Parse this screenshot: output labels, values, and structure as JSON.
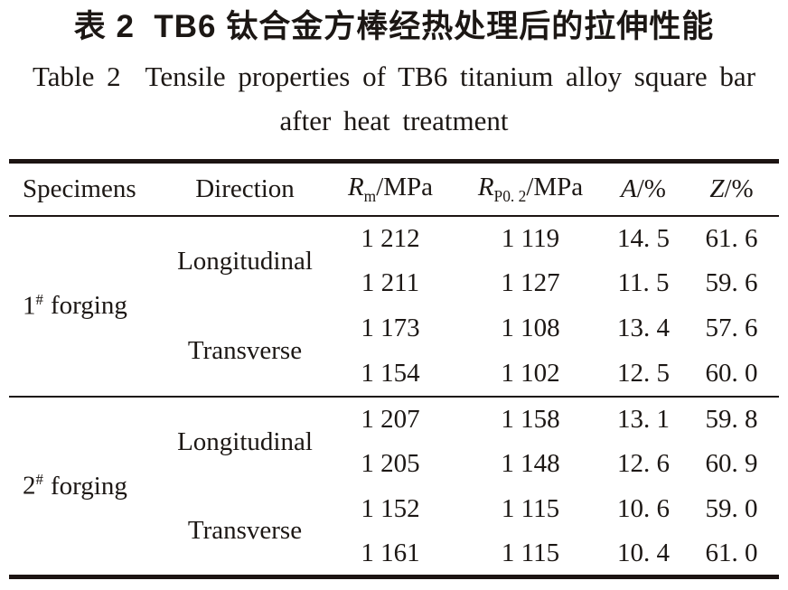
{
  "title": {
    "chinese": "表 2  TB6 钛合金方棒经热处理后的拉伸性能",
    "english_line1": "Table 2  Tensile properties of TB6 titanium alloy square bar",
    "english_line2": "after heat treatment"
  },
  "table": {
    "headers": {
      "specimens": "Specimens",
      "direction": "Direction",
      "rm": {
        "symbol": "R",
        "sub": "m",
        "unit": "/MPa"
      },
      "rp": {
        "symbol": "R",
        "sub": "P0. 2",
        "unit": "/MPa"
      },
      "a": {
        "symbol": "A",
        "unit": "/%"
      },
      "z": {
        "symbol": "Z",
        "unit": "/%"
      }
    },
    "groups": [
      {
        "specimen": {
          "num": "1",
          "sup": "#",
          "label": "forging"
        },
        "directions": [
          {
            "label": "Longitudinal",
            "rows": [
              {
                "rm": "1 212",
                "rp": "1 119",
                "a": "14. 5",
                "z": "61. 6"
              },
              {
                "rm": "1 211",
                "rp": "1 127",
                "a": "11. 5",
                "z": "59. 6"
              }
            ]
          },
          {
            "label": "Transverse",
            "rows": [
              {
                "rm": "1 173",
                "rp": "1 108",
                "a": "13. 4",
                "z": "57. 6"
              },
              {
                "rm": "1 154",
                "rp": "1 102",
                "a": "12. 5",
                "z": "60. 0"
              }
            ]
          }
        ]
      },
      {
        "specimen": {
          "num": "2",
          "sup": "#",
          "label": "forging"
        },
        "directions": [
          {
            "label": "Longitudinal",
            "rows": [
              {
                "rm": "1 207",
                "rp": "1 158",
                "a": "13. 1",
                "z": "59. 8"
              },
              {
                "rm": "1 205",
                "rp": "1 148",
                "a": "12. 6",
                "z": "60. 9"
              }
            ]
          },
          {
            "label": "Transverse",
            "rows": [
              {
                "rm": "1 152",
                "rp": "1 115",
                "a": "10. 6",
                "z": "59. 0"
              },
              {
                "rm": "1 161",
                "rp": "1 115",
                "a": "10. 4",
                "z": "61. 0"
              }
            ]
          }
        ]
      }
    ]
  }
}
